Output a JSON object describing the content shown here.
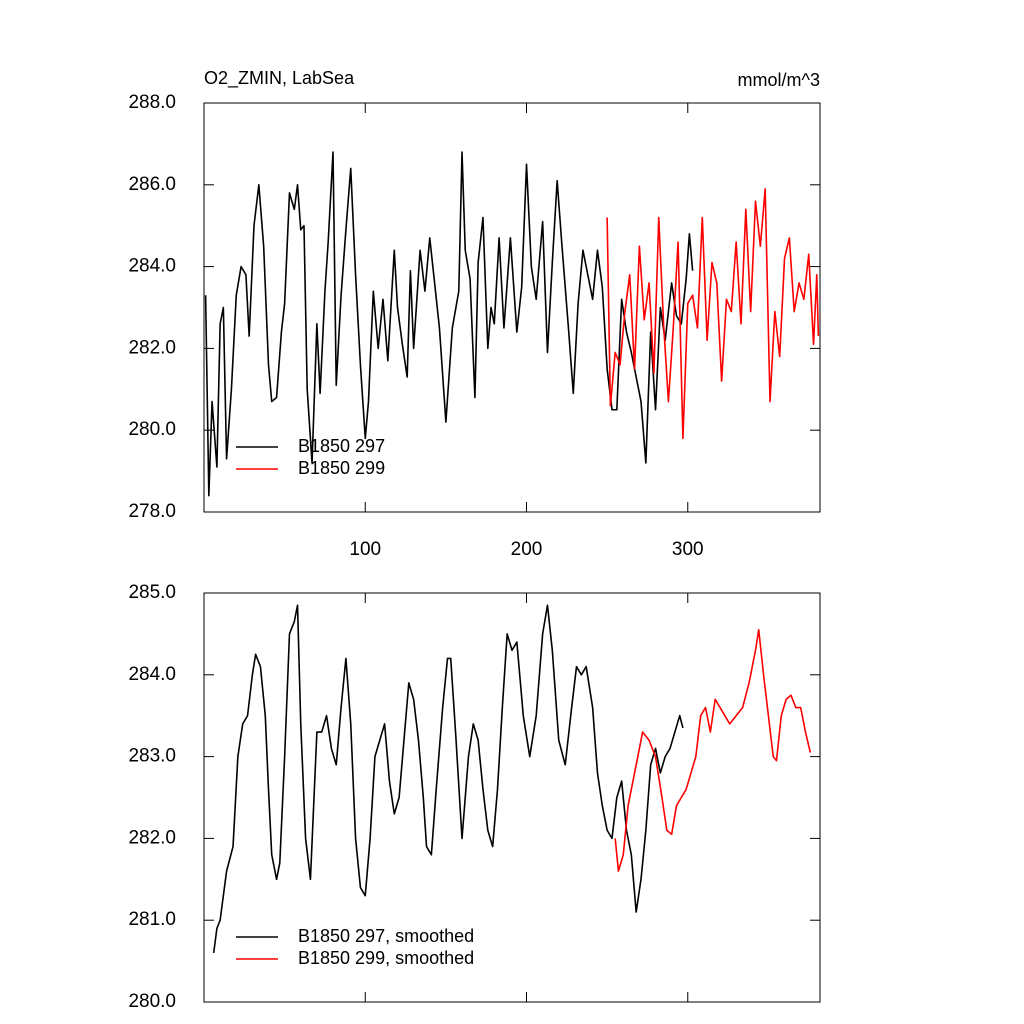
{
  "chart_data": [
    {
      "type": "line",
      "title": "O2_ZMIN, LabSea",
      "units": "mmol/m^3",
      "xlim": [
        0,
        382
      ],
      "xticks": [
        100,
        200,
        300
      ],
      "show_xtick_labels": true,
      "ylim": [
        278,
        288
      ],
      "yticks": [
        {
          "value": 278,
          "label": "278.0"
        },
        {
          "value": 280,
          "label": "280.0"
        },
        {
          "value": 282,
          "label": "282.0"
        },
        {
          "value": 284,
          "label": "284.0"
        },
        {
          "value": 286,
          "label": "286.0"
        },
        {
          "value": 288,
          "label": "288.0"
        }
      ],
      "legend": "lower left",
      "series": [
        {
          "name": "B1850 297",
          "color": "#000000",
          "x": [
            1,
            3,
            5,
            8,
            10,
            12,
            14,
            17,
            20,
            23,
            26,
            28,
            31,
            34,
            37,
            40,
            42,
            45,
            48,
            50,
            53,
            56,
            58,
            60,
            62,
            64,
            67,
            70,
            72,
            75,
            77,
            80,
            82,
            85,
            88,
            91,
            94,
            97,
            100,
            102,
            105,
            108,
            111,
            114,
            118,
            120,
            123,
            126,
            128,
            130,
            134,
            137,
            140,
            143,
            146,
            150,
            154,
            158,
            160,
            162,
            165,
            168,
            170,
            173,
            176,
            178,
            180,
            183,
            186,
            190,
            194,
            197,
            200,
            203,
            206,
            210,
            213,
            216,
            219,
            222,
            226,
            229,
            232,
            235,
            238,
            241,
            244,
            247,
            250,
            253,
            256,
            259,
            262,
            265,
            268,
            271,
            274,
            277,
            280,
            283,
            286,
            290,
            293,
            296,
            299,
            301,
            303
          ],
          "values": [
            283.3,
            278.4,
            280.7,
            279.1,
            282.6,
            283.0,
            279.3,
            281.0,
            283.3,
            284.0,
            283.8,
            282.3,
            285.0,
            286.0,
            284.5,
            281.6,
            280.7,
            280.8,
            282.4,
            283.1,
            285.8,
            285.4,
            286.0,
            284.9,
            285.0,
            281.0,
            279.2,
            282.6,
            280.9,
            283.4,
            284.6,
            286.8,
            281.1,
            283.3,
            284.9,
            286.4,
            283.8,
            281.6,
            279.8,
            280.7,
            283.4,
            282.0,
            283.2,
            281.7,
            284.4,
            283.0,
            282.1,
            281.3,
            283.9,
            282.0,
            284.4,
            283.4,
            284.7,
            283.6,
            282.5,
            280.2,
            282.5,
            283.4,
            286.8,
            284.4,
            283.7,
            280.8,
            284.1,
            285.2,
            282.0,
            283.0,
            282.6,
            284.7,
            282.5,
            284.7,
            282.4,
            283.5,
            286.5,
            284.0,
            283.2,
            285.1,
            281.9,
            284.1,
            286.1,
            284.5,
            282.5,
            280.9,
            283.1,
            284.4,
            283.8,
            283.2,
            284.4,
            283.5,
            281.5,
            280.5,
            280.5,
            283.2,
            282.4,
            281.9,
            281.3,
            280.7,
            279.2,
            282.4,
            280.5,
            283.0,
            282.2,
            283.6,
            282.8,
            282.6,
            283.7,
            284.8,
            283.9
          ]
        },
        {
          "name": "B1850 299",
          "color": "#ff0000",
          "x": [
            250,
            252,
            255,
            258,
            261,
            264,
            267,
            270,
            273,
            276,
            279,
            282,
            285,
            288,
            291,
            294,
            297,
            300,
            303,
            306,
            309,
            312,
            315,
            318,
            321,
            324,
            327,
            330,
            333,
            336,
            339,
            342,
            345,
            348,
            351,
            354,
            357,
            360,
            363,
            366,
            369,
            372,
            375,
            378,
            380,
            381
          ],
          "values": [
            285.2,
            280.6,
            281.9,
            281.6,
            282.9,
            283.8,
            281.5,
            284.5,
            282.7,
            283.6,
            281.4,
            285.2,
            282.6,
            280.7,
            282.5,
            284.6,
            279.8,
            283.1,
            283.3,
            282.5,
            285.2,
            282.2,
            284.1,
            283.6,
            281.2,
            283.2,
            282.9,
            284.6,
            282.6,
            285.4,
            282.9,
            285.6,
            284.5,
            285.9,
            280.7,
            282.9,
            281.8,
            284.2,
            284.7,
            282.9,
            283.6,
            283.2,
            284.3,
            282.1,
            283.8,
            282.3
          ]
        }
      ]
    },
    {
      "type": "line",
      "xlim": [
        0,
        382
      ],
      "xticks": [
        100,
        200,
        300
      ],
      "show_xtick_labels": false,
      "ylim": [
        280,
        285
      ],
      "yticks": [
        {
          "value": 280,
          "label": "280.0"
        },
        {
          "value": 281,
          "label": "281.0"
        },
        {
          "value": 282,
          "label": "282.0"
        },
        {
          "value": 283,
          "label": "283.0"
        },
        {
          "value": 284,
          "label": "284.0"
        },
        {
          "value": 285,
          "label": "285.0"
        }
      ],
      "legend": "lower left",
      "series": [
        {
          "name": "B1850 297, smoothed",
          "color": "#000000",
          "x": [
            6,
            8,
            10,
            14,
            18,
            21,
            24,
            27,
            30,
            32,
            35,
            38,
            40,
            42,
            45,
            47,
            50,
            53,
            56,
            58,
            60,
            63,
            66,
            70,
            73,
            76,
            79,
            82,
            85,
            88,
            91,
            94,
            97,
            100,
            103,
            106,
            109,
            112,
            115,
            118,
            121,
            124,
            127,
            130,
            133,
            136,
            138,
            141,
            144,
            148,
            151,
            153,
            156,
            160,
            164,
            167,
            170,
            173,
            176,
            179,
            182,
            185,
            188,
            191,
            194,
            198,
            202,
            206,
            210,
            213,
            216,
            220,
            224,
            228,
            231,
            234,
            237,
            241,
            244,
            247,
            250,
            253,
            256,
            259,
            262,
            265,
            268,
            271,
            274,
            277,
            280,
            283,
            286,
            289,
            292,
            295,
            297
          ],
          "values": [
            280.6,
            280.9,
            281.0,
            281.6,
            281.9,
            283.0,
            283.4,
            283.5,
            284.0,
            284.25,
            284.1,
            283.5,
            282.6,
            281.8,
            281.5,
            281.7,
            283.0,
            284.5,
            284.65,
            284.85,
            283.4,
            282.0,
            281.5,
            283.3,
            283.3,
            283.5,
            283.1,
            282.9,
            283.6,
            284.2,
            283.4,
            282.0,
            281.4,
            281.3,
            282.0,
            283.0,
            283.2,
            283.4,
            282.7,
            282.3,
            282.5,
            283.2,
            283.9,
            283.7,
            283.2,
            282.5,
            281.9,
            281.8,
            282.6,
            283.6,
            284.2,
            284.2,
            283.3,
            282.0,
            283.0,
            283.4,
            283.2,
            282.6,
            282.1,
            281.9,
            282.6,
            283.6,
            284.5,
            284.3,
            284.4,
            283.5,
            283.0,
            283.5,
            284.5,
            284.85,
            284.3,
            283.2,
            282.9,
            283.6,
            284.1,
            284.0,
            284.1,
            283.6,
            282.8,
            282.4,
            282.1,
            282.0,
            282.5,
            282.7,
            282.1,
            281.8,
            281.1,
            281.5,
            282.1,
            282.9,
            283.1,
            282.8,
            283.0,
            283.1,
            283.3,
            283.5,
            283.35
          ]
        },
        {
          "name": "B1850 299, smoothed",
          "color": "#ff0000",
          "x": [
            255,
            257,
            260,
            263,
            266,
            269,
            272,
            276,
            280,
            284,
            287,
            290,
            293,
            296,
            299,
            302,
            305,
            308,
            311,
            314,
            317,
            320,
            323,
            326,
            330,
            334,
            338,
            342,
            344,
            347,
            350,
            353,
            355,
            358,
            361,
            364,
            367,
            370,
            373,
            376
          ],
          "values": [
            282.0,
            281.6,
            281.8,
            282.4,
            282.7,
            283.0,
            283.3,
            283.2,
            283.0,
            282.5,
            282.1,
            282.05,
            282.4,
            282.5,
            282.6,
            282.8,
            283.0,
            283.5,
            283.6,
            283.3,
            283.7,
            283.6,
            283.5,
            283.4,
            283.5,
            283.6,
            283.9,
            284.3,
            284.55,
            284.0,
            283.5,
            283.0,
            282.95,
            283.5,
            283.7,
            283.75,
            283.6,
            283.6,
            283.3,
            283.05
          ]
        }
      ]
    }
  ]
}
